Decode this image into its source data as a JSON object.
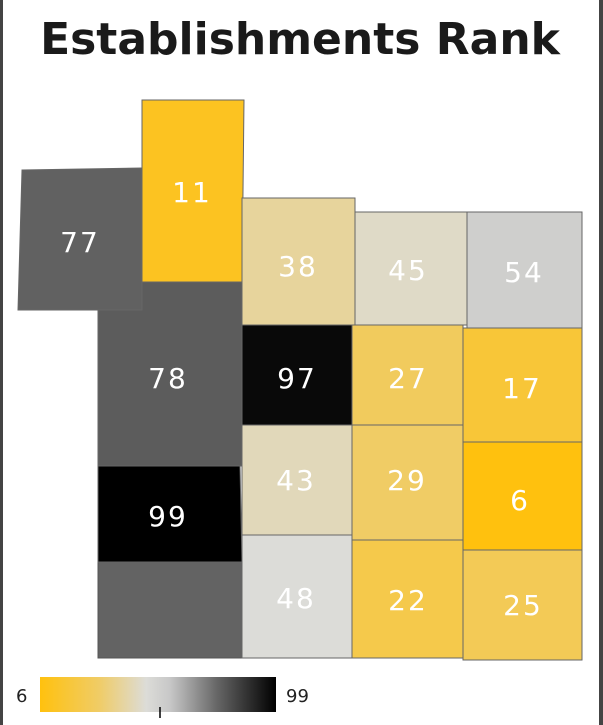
{
  "title": "Establishments Rank",
  "regions": [
    {
      "value": 11
    },
    {
      "value": 77
    },
    {
      "value": 78
    },
    {
      "value": 99
    },
    {
      "value": 38
    },
    {
      "value": 45
    },
    {
      "value": 54
    },
    {
      "value": 97
    },
    {
      "value": 27
    },
    {
      "value": 17
    },
    {
      "value": 43
    },
    {
      "value": 29
    },
    {
      "value": 6
    },
    {
      "value": 48
    },
    {
      "value": 22
    },
    {
      "value": 25
    }
  ],
  "legend": {
    "min": 6,
    "max": 99
  }
}
